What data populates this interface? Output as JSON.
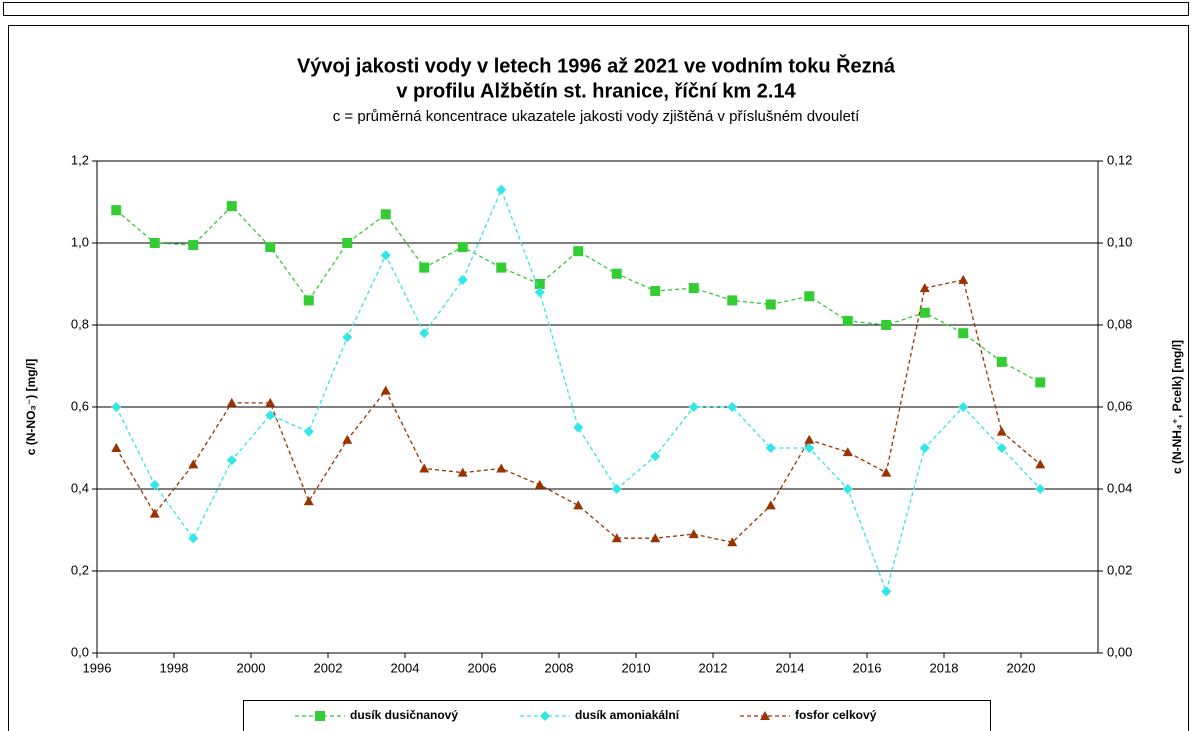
{
  "chart_data": {
    "type": "line",
    "title": "Vývoj jakosti vody v letech 1996 až 2021 ve vodním toku Řezná",
    "title2": "v profilu Alžbětín st. hranice, říční km 2.14",
    "subtitle": "c = průměrná koncentrace ukazatele jakosti vody zjištěná v příslušném dvouletí",
    "ylabel": "c (N-NO₃⁻) [mg/l]",
    "y2label": "c (N-NH₄⁺, Pcelk) [mg/l]",
    "x": [
      1996.5,
      1997.5,
      1998.5,
      1999.5,
      2000.5,
      2001.5,
      2002.5,
      2003.5,
      2004.5,
      2005.5,
      2006.5,
      2007.5,
      2008.5,
      2009.5,
      2010.5,
      2011.5,
      2012.5,
      2013.5,
      2014.5,
      2015.5,
      2016.5,
      2017.5,
      2018.5,
      2019.5,
      2020.5
    ],
    "xlim": [
      1996,
      2022
    ],
    "xticks": [
      1996,
      1998,
      2000,
      2002,
      2004,
      2006,
      2008,
      2010,
      2012,
      2014,
      2016,
      2018,
      2020
    ],
    "ylim": [
      0,
      1.2
    ],
    "yticks": [
      {
        "value": 0,
        "label": "0,0"
      },
      {
        "value": 0.2,
        "label": "0,2"
      },
      {
        "value": 0.4,
        "label": "0,4"
      },
      {
        "value": 0.6,
        "label": "0,6"
      },
      {
        "value": 0.8,
        "label": "0,8"
      },
      {
        "value": 1.0,
        "label": "1,0"
      },
      {
        "value": 1.2,
        "label": "1,2"
      }
    ],
    "y2lim": [
      0,
      0.12
    ],
    "y2ticks": [
      {
        "value": 0,
        "label": "0,00"
      },
      {
        "value": 0.02,
        "label": "0,02"
      },
      {
        "value": 0.04,
        "label": "0,04"
      },
      {
        "value": 0.06,
        "label": "0,06"
      },
      {
        "value": 0.08,
        "label": "0,08"
      },
      {
        "value": 0.1,
        "label": "0,10"
      },
      {
        "value": 0.12,
        "label": "0,12"
      }
    ],
    "grid": true,
    "legend": "bottom",
    "series": [
      {
        "name": "dusík dusičnanový",
        "color": "#33cc33",
        "marker": "square",
        "values": [
          1.08,
          1.0,
          0.995,
          1.09,
          0.99,
          0.86,
          1.0,
          1.07,
          0.94,
          0.99,
          0.94,
          0.9,
          0.98,
          0.925,
          0.883,
          0.89,
          0.86,
          0.85,
          0.87,
          0.81,
          0.8,
          0.83,
          0.78,
          0.71,
          0.66
        ]
      },
      {
        "name": "dusík amoniakální",
        "color": "#33e6e6",
        "marker": "diamond",
        "axis": "y2",
        "values": [
          0.06,
          0.041,
          0.028,
          0.047,
          0.058,
          0.054,
          0.077,
          0.097,
          0.078,
          0.091,
          0.113,
          0.088,
          0.055,
          0.04,
          0.048,
          0.06,
          0.06,
          0.05,
          0.05,
          0.04,
          0.015,
          0.05,
          0.06,
          0.05,
          0.04
        ]
      },
      {
        "name": "fosfor celkový",
        "color": "#993300",
        "marker": "triangle",
        "axis": "y2",
        "values": [
          0.05,
          0.034,
          0.046,
          0.061,
          0.061,
          0.037,
          0.052,
          0.064,
          0.045,
          0.044,
          0.045,
          0.041,
          0.036,
          0.028,
          0.028,
          0.029,
          0.027,
          0.036,
          0.052,
          0.049,
          0.044,
          0.089,
          0.091,
          0.054,
          0.046
        ]
      }
    ]
  }
}
